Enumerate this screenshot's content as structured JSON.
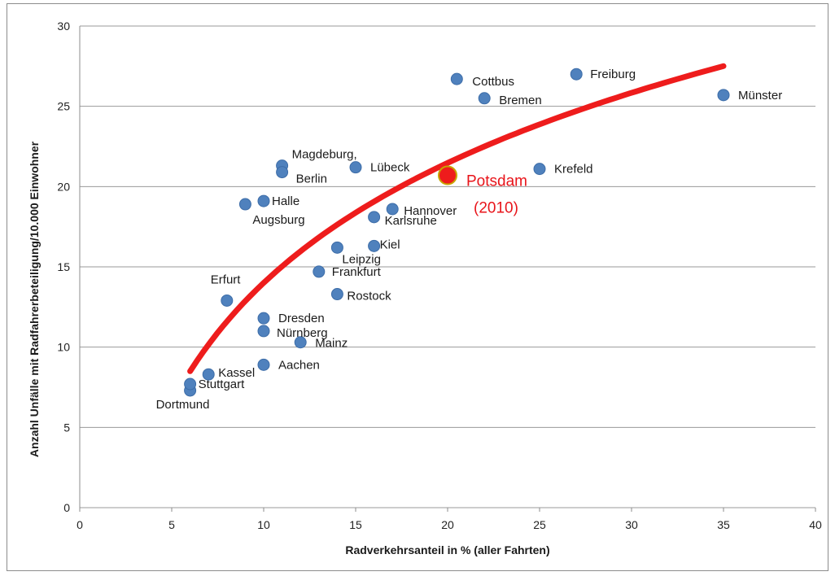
{
  "chart_data": {
    "type": "scatter",
    "title": "",
    "xlabel": "Radverkehrsanteil in % (aller Fahrten)",
    "ylabel": "Anzahl Unfälle mit Radfahrerbeteiligung/10.000 Einwohner",
    "xlim": [
      0,
      40
    ],
    "ylim": [
      0,
      30
    ],
    "x_ticks": [
      0,
      5,
      10,
      15,
      20,
      25,
      30,
      35,
      40
    ],
    "y_ticks": [
      0,
      5,
      10,
      15,
      20,
      25,
      30
    ],
    "grid": "horizontal",
    "legend": "none",
    "colors": {
      "points": "#4f81bd",
      "trend": "#ee1c1c",
      "highlight": "#ee1c1c",
      "highlight_ring": "#c8a400"
    },
    "series": [
      {
        "values": [
          {
            "x": 6,
            "y": 7.3,
            "label": "Dortmund"
          },
          {
            "x": 6,
            "y": 7.7,
            "label": "Stuttgart"
          },
          {
            "x": 7,
            "y": 8.3,
            "label": "Kassel"
          },
          {
            "x": 8,
            "y": 12.9,
            "label": "Erfurt"
          },
          {
            "x": 9,
            "y": 18.9,
            "label": "Augsburg"
          },
          {
            "x": 10,
            "y": 19.1,
            "label": "Halle"
          },
          {
            "x": 10,
            "y": 8.9,
            "label": "Aachen"
          },
          {
            "x": 10,
            "y": 11.0,
            "label": "Nürnberg"
          },
          {
            "x": 10,
            "y": 11.8,
            "label": "Dresden"
          },
          {
            "x": 11,
            "y": 21.3,
            "label": "Magdeburg,"
          },
          {
            "x": 11,
            "y": 20.9,
            "label": "Berlin"
          },
          {
            "x": 12,
            "y": 10.3,
            "label": "Mainz"
          },
          {
            "x": 13,
            "y": 14.7,
            "label": "Frankfurt"
          },
          {
            "x": 14,
            "y": 16.2,
            "label": "Leipzig"
          },
          {
            "x": 14,
            "y": 13.3,
            "label": "Rostock"
          },
          {
            "x": 15,
            "y": 21.2,
            "label": "Lübeck"
          },
          {
            "x": 16,
            "y": 18.1,
            "label": "Karlsruhe"
          },
          {
            "x": 16,
            "y": 16.3,
            "label": "Kiel"
          },
          {
            "x": 17,
            "y": 18.6,
            "label": "Hannover"
          },
          {
            "x": 20.5,
            "y": 26.7,
            "label": "Cottbus"
          },
          {
            "x": 22,
            "y": 25.5,
            "label": "Bremen"
          },
          {
            "x": 25,
            "y": 21.1,
            "label": "Krefeld"
          },
          {
            "x": 27,
            "y": 27.0,
            "label": "Freiburg"
          },
          {
            "x": 35,
            "y": 25.7,
            "label": "Münster"
          }
        ]
      }
    ],
    "highlight": {
      "x": 20,
      "y": 20.7,
      "label_line1": "Potsdam",
      "label_line2": "(2010)"
    },
    "trendline": {
      "type": "logarithmic",
      "x_range": [
        6,
        35
      ],
      "endpoints": [
        {
          "x": 6,
          "y": 8.5
        },
        {
          "x": 35,
          "y": 27.5
        }
      ]
    }
  }
}
